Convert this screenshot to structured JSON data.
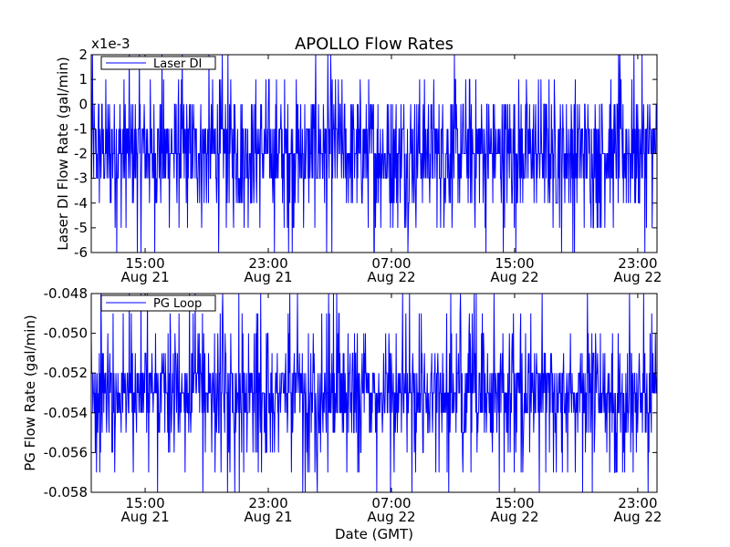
{
  "figure": {
    "title": "APOLLO Flow Rates",
    "xlabel": "Date (GMT)"
  },
  "chart_data": [
    {
      "type": "line",
      "title": "APOLLO Flow Rates",
      "ylabel": "Laser DI Flow Rate (gal/min)",
      "offset_label": "x1e-3",
      "ylim": [
        -6,
        2
      ],
      "y_ticks": [
        "-6",
        "-5",
        "-4",
        "-3",
        "-2",
        "-1",
        "0",
        "1",
        "2"
      ],
      "x_ticks": [
        {
          "time": "15:00",
          "date": "Aug 21"
        },
        {
          "time": "23:00",
          "date": "Aug 21"
        },
        {
          "time": "07:00",
          "date": "Aug 22"
        },
        {
          "time": "15:00",
          "date": "Aug 22"
        },
        {
          "time": "23:00",
          "date": "Aug 22"
        }
      ],
      "legend": {
        "placement": "top-left"
      },
      "grid": false,
      "color": "#0000ff",
      "series": [
        {
          "name": "Laser DI",
          "x_start": "Aug 21 11:30",
          "x_end": "Aug 23 00:15",
          "level_values": [
            -6,
            -5,
            -4,
            -3,
            -2,
            -1,
            0,
            1,
            2
          ],
          "level_weights": [
            0.012,
            0.03,
            0.08,
            0.2,
            0.3,
            0.22,
            0.11,
            0.03,
            0.018
          ]
        }
      ]
    },
    {
      "type": "line",
      "ylabel": "PG Flow Rate (gal/min)",
      "ylim": [
        -0.058,
        -0.048
      ],
      "y_ticks": [
        "-0.058",
        "-0.056",
        "-0.054",
        "-0.052",
        "-0.050",
        "-0.048"
      ],
      "x_ticks": [
        {
          "time": "15:00",
          "date": "Aug 21"
        },
        {
          "time": "23:00",
          "date": "Aug 21"
        },
        {
          "time": "07:00",
          "date": "Aug 22"
        },
        {
          "time": "15:00",
          "date": "Aug 22"
        },
        {
          "time": "23:00",
          "date": "Aug 22"
        }
      ],
      "legend": {
        "placement": "top-left"
      },
      "grid": false,
      "color": "#0000ff",
      "series": [
        {
          "name": "PG Loop",
          "x_start": "Aug 21 11:30",
          "x_end": "Aug 23 00:15",
          "level_values": [
            -0.058,
            -0.057,
            -0.056,
            -0.055,
            -0.054,
            -0.053,
            -0.052,
            -0.051,
            -0.05,
            -0.049,
            -0.048
          ],
          "level_weights": [
            0.01,
            0.02,
            0.04,
            0.08,
            0.2,
            0.28,
            0.2,
            0.09,
            0.04,
            0.025,
            0.015
          ]
        }
      ]
    }
  ]
}
